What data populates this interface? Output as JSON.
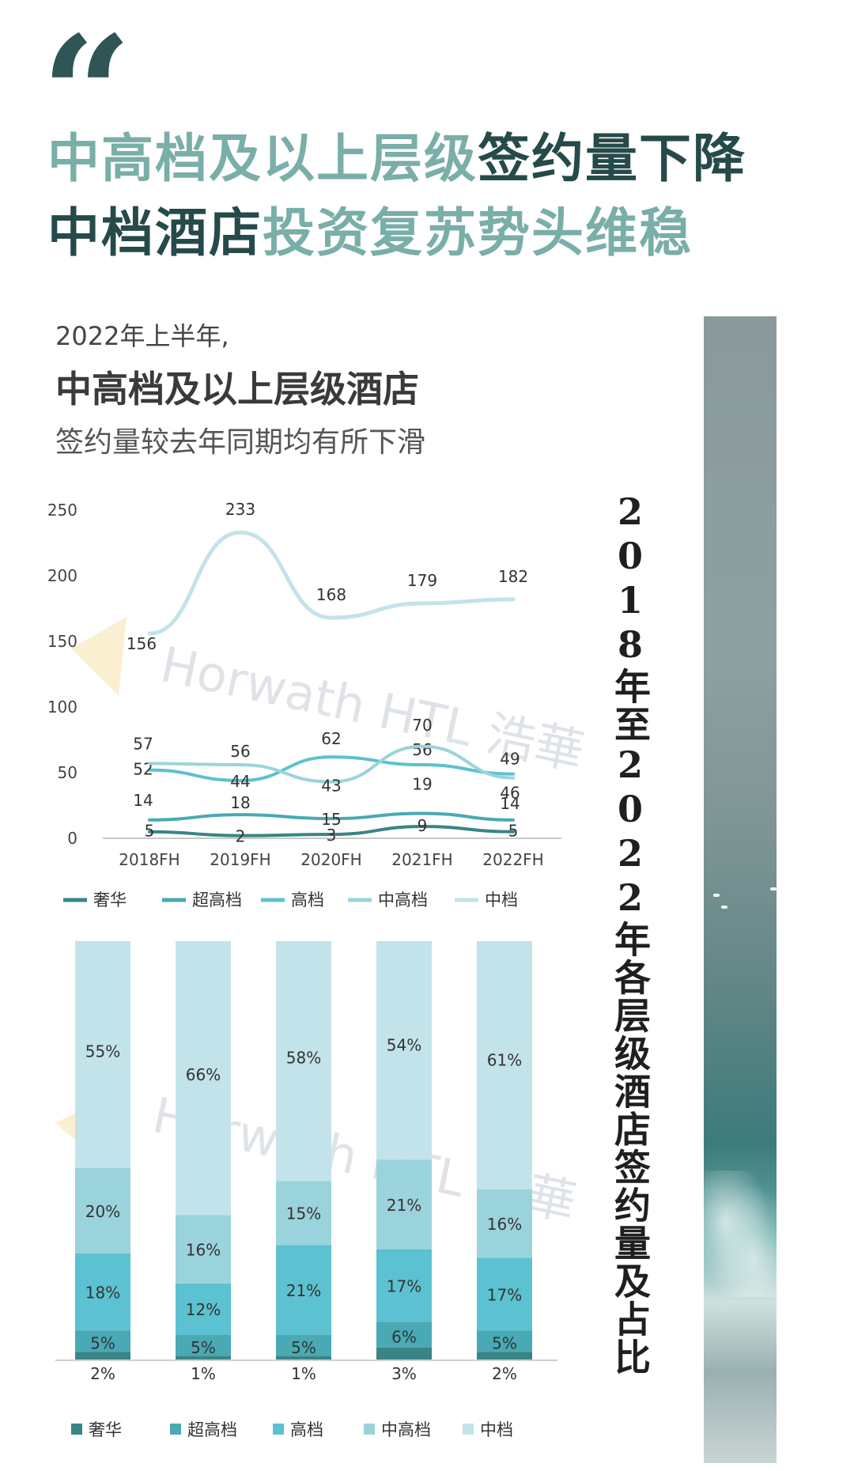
{
  "quote_mark": "“",
  "headline": {
    "line1_light": "中高档及以上层级",
    "line1_dark": "签约量下降",
    "line2_dark": "中档酒店",
    "line2_light": "投资复苏势头维稳"
  },
  "subtitle": {
    "line1": "2022年上半年,",
    "line2": "中高档及以上层级酒店",
    "line3": "签约量较去年同期均有所下滑"
  },
  "side_title": "2018年至2022年各层级酒店签约量及占比",
  "watermark": {
    "text": "Horwath HTL 浩華"
  },
  "colors": {
    "luxury": "#3a8486",
    "upper_upscale": "#49a9b4",
    "upscale": "#5cc1d0",
    "upper_midscale": "#9bd3dc",
    "midscale": "#c3e3ea",
    "headline_light": "#7aaea8",
    "headline_dark": "#264a4a"
  },
  "chart_data": [
    {
      "type": "line",
      "categories": [
        "2018FH",
        "2019FH",
        "2020FH",
        "2021FH",
        "2022FH"
      ],
      "ylim": [
        0,
        250
      ],
      "yticks": [
        0,
        50,
        100,
        150,
        200,
        250
      ],
      "grid": false,
      "legend_position": "bottom",
      "series": [
        {
          "name": "奢华",
          "values": [
            5,
            2,
            3,
            9,
            5
          ]
        },
        {
          "name": "超高档",
          "values": [
            14,
            18,
            15,
            19,
            14
          ]
        },
        {
          "name": "高档",
          "values": [
            52,
            44,
            62,
            56,
            49
          ]
        },
        {
          "name": "中高档",
          "values": [
            57,
            56,
            43,
            70,
            46
          ]
        },
        {
          "name": "中档",
          "values": [
            156,
            233,
            168,
            179,
            182
          ]
        }
      ]
    },
    {
      "type": "bar",
      "stacked": true,
      "normalized": true,
      "categories": [
        "2018FH",
        "2019FH",
        "2020FH",
        "2021FH",
        "2022FH"
      ],
      "legend_position": "bottom",
      "series": [
        {
          "name": "奢华",
          "values": [
            2,
            1,
            1,
            3,
            2
          ],
          "labels": [
            "2%",
            "1%",
            "1%",
            "3%",
            "2%"
          ]
        },
        {
          "name": "超高档",
          "values": [
            5,
            5,
            5,
            6,
            5
          ],
          "labels": [
            "5%",
            "5%",
            "5%",
            "6%",
            "5%"
          ]
        },
        {
          "name": "高档",
          "values": [
            18,
            12,
            21,
            17,
            17
          ],
          "labels": [
            "18%",
            "12%",
            "21%",
            "17%",
            "17%"
          ]
        },
        {
          "name": "中高档",
          "values": [
            20,
            16,
            15,
            21,
            16
          ],
          "labels": [
            "20%",
            "16%",
            "15%",
            "21%",
            "16%"
          ]
        },
        {
          "name": "中档",
          "values": [
            55,
            66,
            58,
            54,
            61
          ],
          "labels": [
            "55%",
            "66%",
            "58%",
            "54%",
            "61%"
          ]
        }
      ]
    }
  ]
}
